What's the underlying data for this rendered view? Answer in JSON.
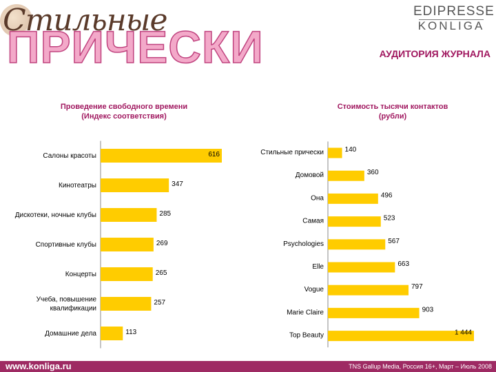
{
  "header": {
    "logo_script": "Стильные",
    "logo_title": "ПРИЧЕСКИ",
    "brand_line1": "EDIPRESSE",
    "brand_line2": "KONLIGA",
    "section_title": "АУДИТОРИЯ ЖУРНАЛА"
  },
  "chart_data": [
    {
      "type": "bar",
      "orientation": "horizontal",
      "title": "Проведение свободного времени\n(Индекс соответствия)",
      "xlabel": "",
      "ylabel": "",
      "categories": [
        "Салоны красоты",
        "Кинотеатры",
        "Дискотеки, ночные клубы",
        "Спортивные клубы",
        "Концерты",
        "Учеба, повышение квалификации",
        "Домашние дела"
      ],
      "category_lines": [
        [
          "Салоны красоты"
        ],
        [
          "Кинотеатры"
        ],
        [
          "Дискотеки, ночные клубы"
        ],
        [
          "Спортивные клубы"
        ],
        [
          "Концерты"
        ],
        [
          "Учеба, повышение",
          "квалификации"
        ],
        [
          "Домашние дела"
        ]
      ],
      "values": [
        616,
        347,
        285,
        269,
        265,
        257,
        113
      ],
      "value_labels": [
        "616",
        "347",
        "285",
        "269",
        "265",
        "257",
        "113"
      ],
      "xlim": [
        0,
        616
      ],
      "bar_color": "#FFCC00",
      "grid": false,
      "legend": "none"
    },
    {
      "type": "bar",
      "orientation": "horizontal",
      "title": "Стоимость тысячи контактов\n(рубли)",
      "xlabel": "",
      "ylabel": "",
      "categories": [
        "Стильные прически",
        "Домовой",
        "Она",
        "Самая",
        "Psychologies",
        "Elle",
        "Vogue",
        "Marie Claire",
        "Top Beauty"
      ],
      "category_lines": [
        [
          "Стильные прически"
        ],
        [
          "Домовой"
        ],
        [
          "Она"
        ],
        [
          "Самая"
        ],
        [
          "Psychologies"
        ],
        [
          "Elle"
        ],
        [
          "Vogue"
        ],
        [
          "Marie Claire"
        ],
        [
          "Top Beauty"
        ]
      ],
      "values": [
        140,
        360,
        496,
        523,
        567,
        663,
        797,
        903,
        1444
      ],
      "value_labels": [
        "140",
        "360",
        "496",
        "523",
        "567",
        "663",
        "797",
        "903",
        "1 444"
      ],
      "xlim": [
        0,
        1444
      ],
      "bar_color": "#FFCC00",
      "grid": false,
      "legend": "none"
    }
  ],
  "footer": {
    "url": "www.konliga.ru",
    "source": "TNS Gallup Media, Россия 16+, Март – Июль 2008"
  }
}
